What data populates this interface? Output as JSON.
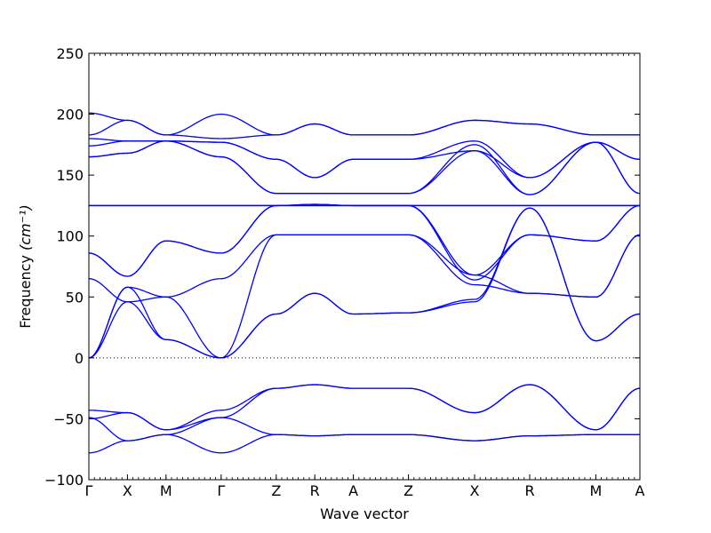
{
  "chart_data": {
    "type": "line",
    "title": "",
    "xlabel": "Wave vector",
    "ylabel": "Frequency",
    "ylabel_unit": "(cm⁻¹)",
    "ylim": [
      -100,
      250
    ],
    "yticks": [
      -100,
      -50,
      0,
      50,
      100,
      150,
      200,
      250
    ],
    "grid": false,
    "line_color": "#0000ff",
    "zero_line": true,
    "x": [
      0,
      0.07,
      0.14,
      0.24,
      0.34,
      0.41,
      0.48,
      0.58,
      0.7,
      0.8,
      0.92,
      1.0
    ],
    "xtick_labels": [
      "Γ",
      "X",
      "M",
      "Γ",
      "Z",
      "R",
      "A",
      "Z",
      "X",
      "R",
      "M",
      "A"
    ],
    "series": [
      {
        "values": [
          0,
          58,
          15,
          0,
          36,
          53,
          36,
          37,
          46,
          123,
          14,
          36
        ]
      },
      {
        "values": [
          0,
          46,
          15,
          0,
          36,
          53,
          36,
          37,
          48,
          123,
          14,
          36
        ]
      },
      {
        "values": [
          0,
          58,
          50,
          0,
          101,
          101,
          101,
          101,
          60,
          53,
          50,
          101
        ]
      },
      {
        "values": [
          65,
          46,
          50,
          65,
          101,
          101,
          101,
          101,
          68,
          53,
          50,
          101
        ]
      },
      {
        "values": [
          86,
          67,
          96,
          86,
          125,
          125,
          125,
          125,
          68,
          101,
          96,
          125
        ]
      },
      {
        "values": [
          86,
          67,
          96,
          86,
          125,
          125,
          125,
          125,
          64,
          101,
          96,
          125
        ]
      },
      {
        "values": [
          125,
          125,
          125,
          125,
          125,
          126,
          125,
          125,
          125,
          125,
          125,
          125
        ]
      },
      {
        "values": [
          125,
          125,
          125,
          125,
          125,
          126,
          125,
          125,
          125,
          125,
          125,
          125
        ]
      },
      {
        "values": [
          165,
          168,
          178,
          165,
          135,
          135,
          135,
          135,
          170,
          134,
          177,
          135
        ]
      },
      {
        "values": [
          165,
          168,
          178,
          165,
          135,
          135,
          135,
          135,
          175,
          134,
          177,
          135
        ]
      },
      {
        "values": [
          174,
          178,
          178,
          177,
          163,
          148,
          163,
          163,
          170,
          148,
          177,
          163
        ]
      },
      {
        "values": [
          180,
          178,
          178,
          177,
          163,
          148,
          163,
          163,
          178,
          148,
          177,
          163
        ]
      },
      {
        "values": [
          183,
          195,
          183,
          180,
          183,
          192,
          183,
          183,
          195,
          192,
          183,
          183
        ]
      },
      {
        "values": [
          201,
          195,
          183,
          200,
          183,
          192,
          183,
          183,
          195,
          192,
          183,
          183
        ]
      },
      {
        "values": [
          -43,
          -45,
          -59,
          -43,
          -25,
          -22,
          -25,
          -25,
          -45,
          -22,
          -59,
          -25
        ]
      },
      {
        "values": [
          -50,
          -45,
          -59,
          -49,
          -25,
          -22,
          -25,
          -25,
          -45,
          -22,
          -59,
          -25
        ]
      },
      {
        "values": [
          -49,
          -68,
          -63,
          -49,
          -63,
          -64,
          -63,
          -63,
          -68,
          -64,
          -63,
          -63
        ]
      },
      {
        "values": [
          -78,
          -68,
          -63,
          -78,
          -63,
          -64,
          -63,
          -63,
          -68,
          -64,
          -63,
          -63
        ]
      }
    ]
  }
}
